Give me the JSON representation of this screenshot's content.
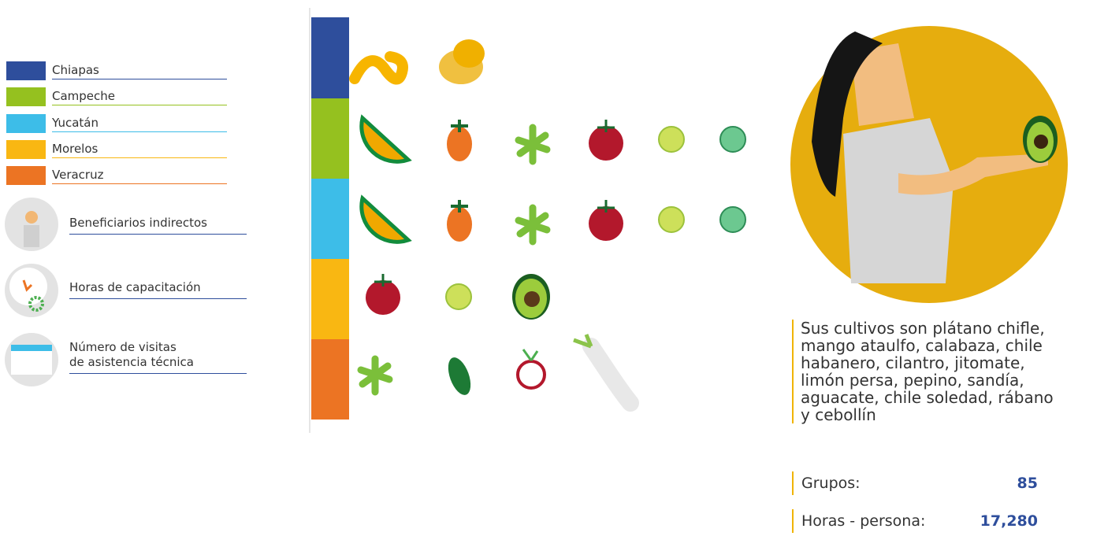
{
  "legend": {
    "states": [
      "Chiapas",
      "Campeche",
      "Yucatán",
      "Morelos",
      "Veracruz"
    ],
    "indicators": [
      [
        "Beneficiarios indirectos"
      ],
      [
        "Horas de capacitación"
      ],
      [
        "Número de visitas",
        "de asistencia técnica"
      ]
    ]
  },
  "description": [
    "Sus cultivos son plátano chifle,",
    "mango ataulfo, calabaza, chile",
    "habanero, cilantro, jitomate,",
    "limón persa, pepino, sandía,",
    "aguacate, chile soledad, rábano",
    "y cebollín"
  ],
  "stats": [
    {
      "label": "Grupos:",
      "value": "85"
    },
    {
      "label": "Horas - persona:",
      "value": "17,280"
    }
  ]
}
